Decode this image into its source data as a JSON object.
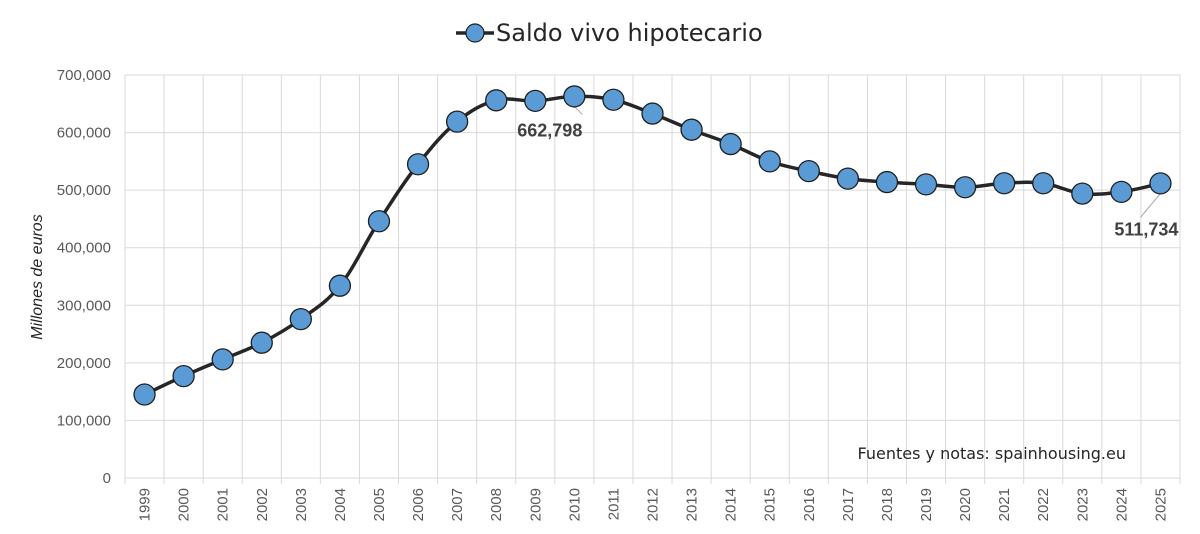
{
  "chart_data": {
    "type": "line",
    "title": "",
    "legend": {
      "position": "top-center",
      "entries": [
        "Saldo vivo hipotecario"
      ]
    },
    "ylabel": "Millones de euros",
    "xlabel": "",
    "ylim": [
      0,
      700000
    ],
    "y_ticks": [
      "0",
      "100,000",
      "200,000",
      "300,000",
      "400,000",
      "500,000",
      "600,000",
      "700,000"
    ],
    "grid": true,
    "categories": [
      "1999",
      "2000",
      "2001",
      "2002",
      "2003",
      "2004",
      "2005",
      "2006",
      "2007",
      "2008",
      "2009",
      "2010",
      "2011",
      "2012",
      "2013",
      "2014",
      "2015",
      "2016",
      "2017",
      "2018",
      "2019",
      "2020",
      "2021",
      "2022",
      "2023",
      "2024",
      "2025"
    ],
    "series": [
      {
        "name": "Saldo vivo hipotecario",
        "values": [
          145000,
          177000,
          206000,
          235000,
          276000,
          334000,
          446000,
          545000,
          619000,
          656000,
          655000,
          662798,
          657000,
          633000,
          605000,
          580000,
          550000,
          533000,
          520000,
          514000,
          510000,
          505000,
          512000,
          512000,
          494000,
          497000,
          511734
        ]
      }
    ],
    "annotations": [
      {
        "index": 11,
        "text": "662,798"
      },
      {
        "index": 26,
        "text": "511,734"
      }
    ],
    "note": "Fuentes y notas: spainhousing.eu",
    "colors": {
      "line": "#262626",
      "marker_fill": "#5b9bd5",
      "marker_stroke": "#1f1f1f",
      "grid": "#d9d9d9"
    }
  }
}
